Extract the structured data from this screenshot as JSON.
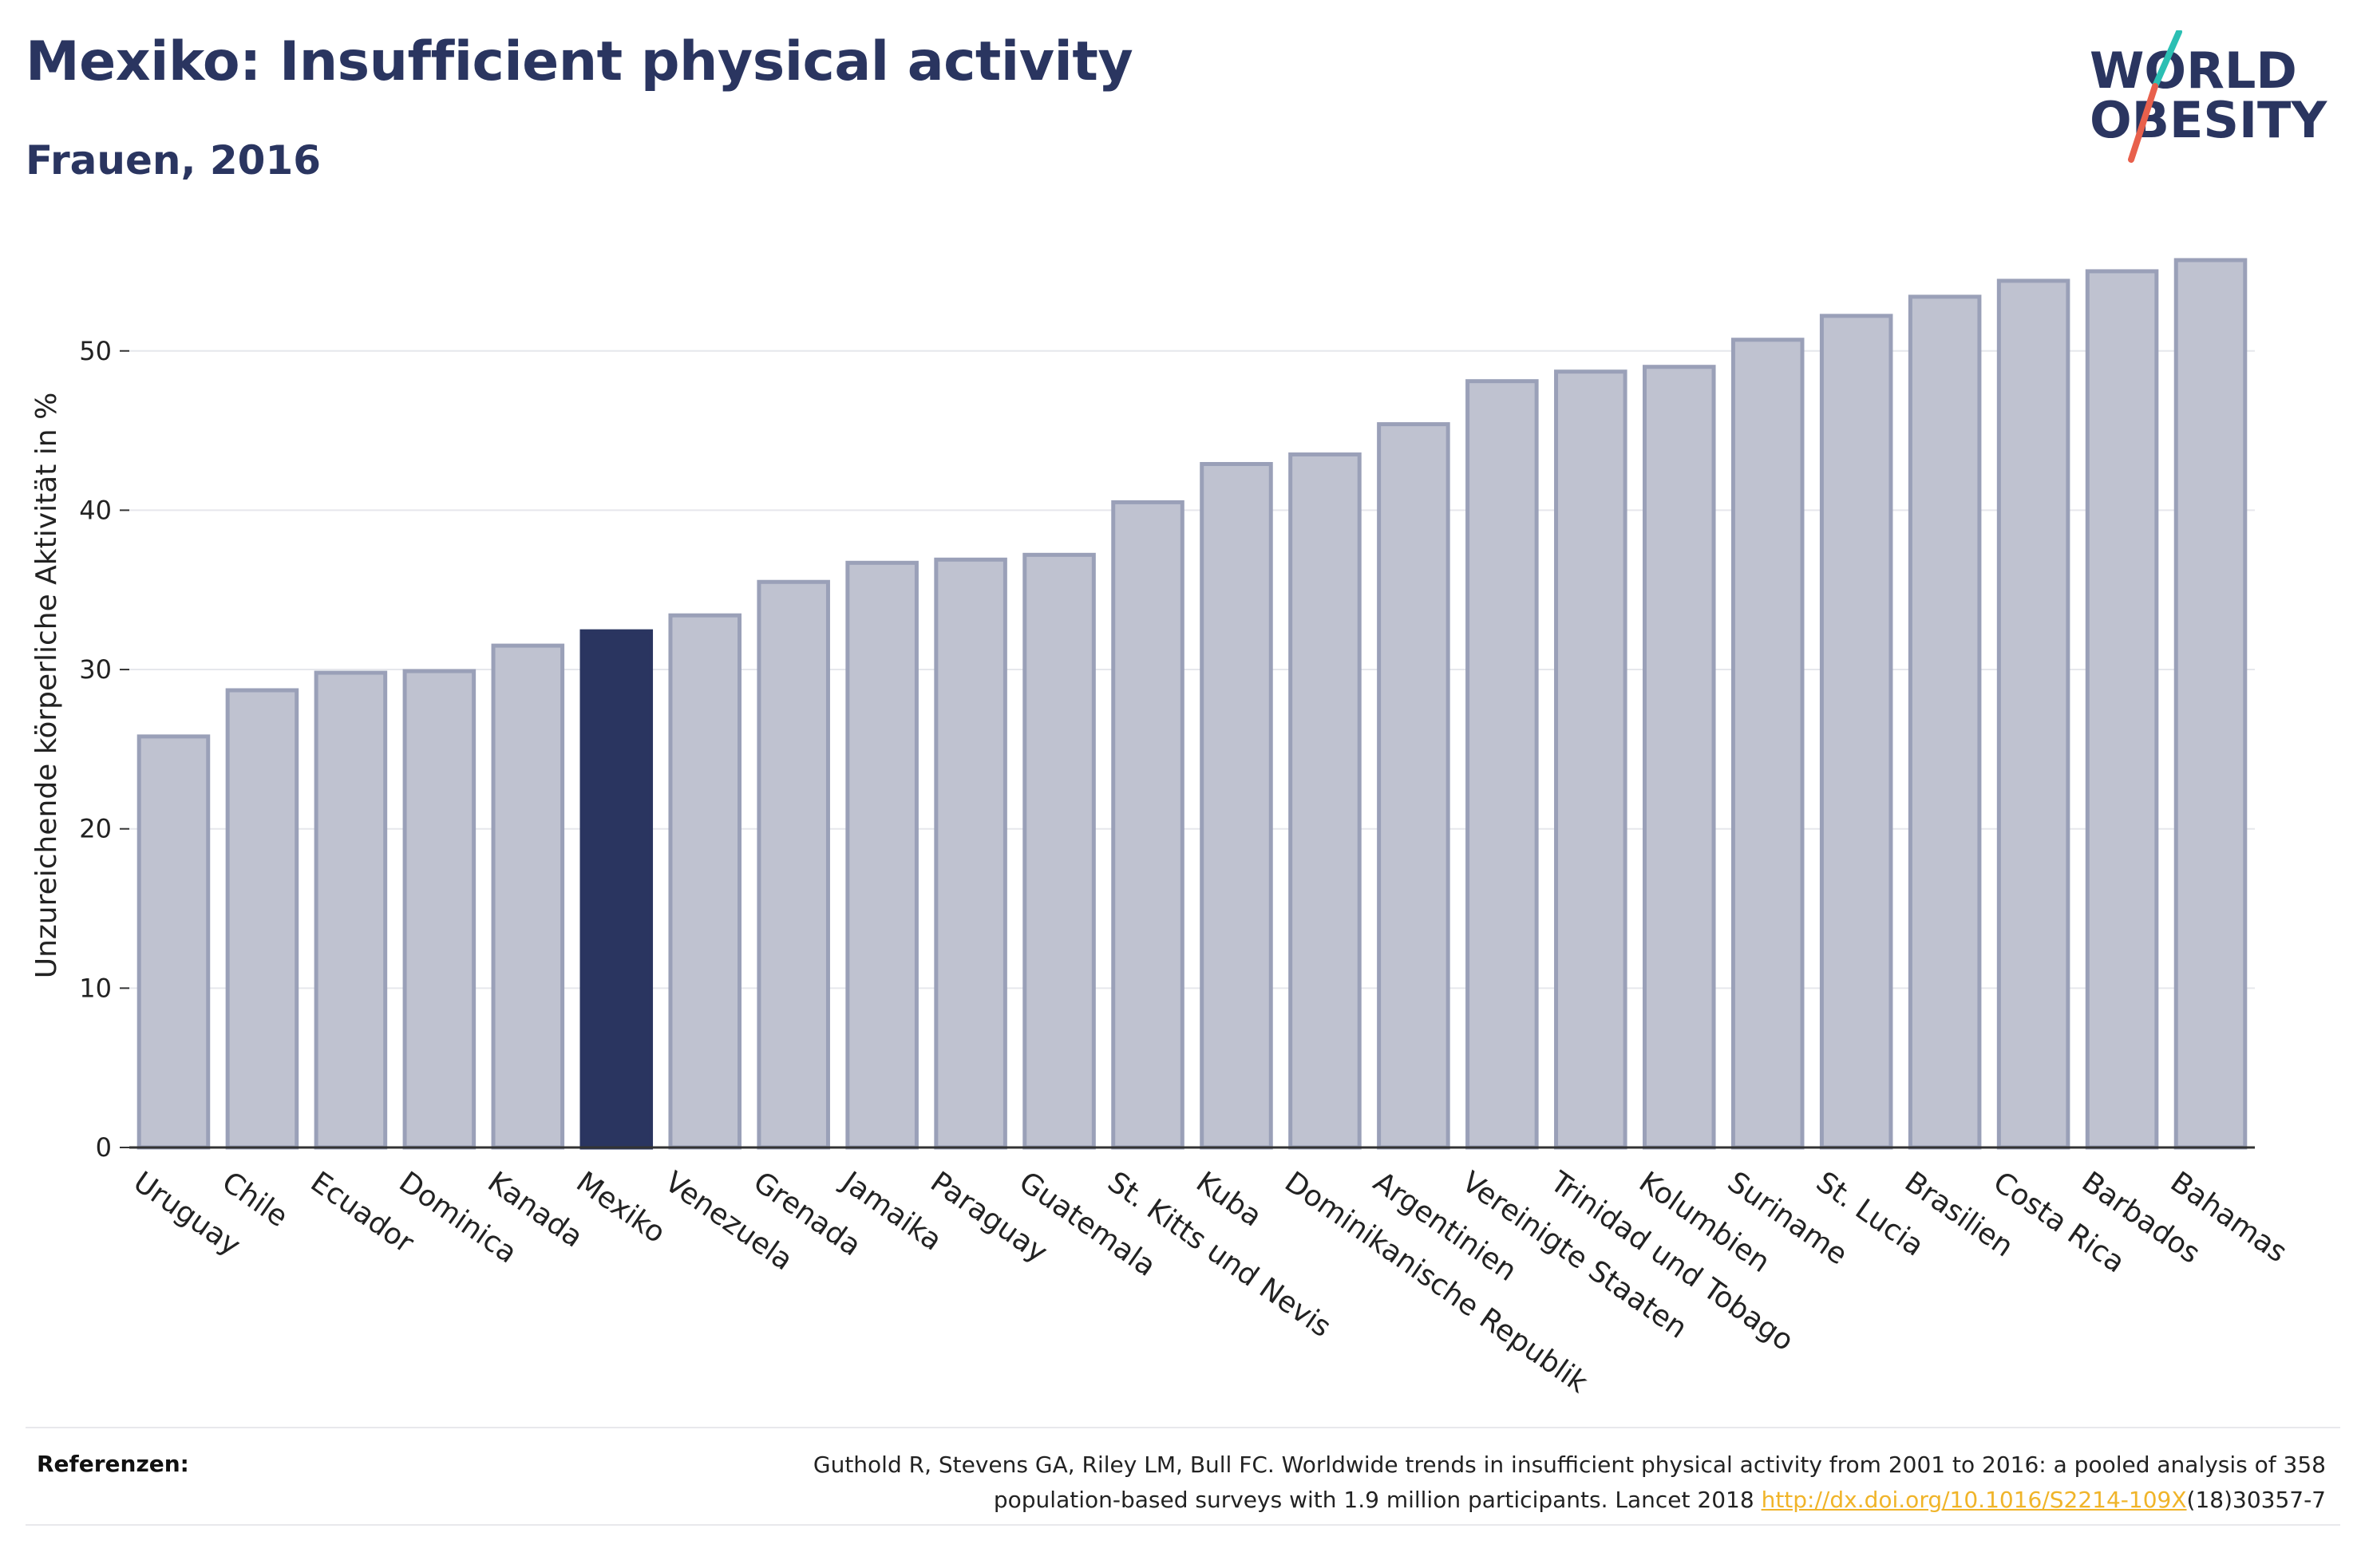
{
  "title": "Mexiko: Insufficient physical activity",
  "subtitle": "Frauen, 2016",
  "logo": {
    "line1": "WORLD",
    "line2": "OBESITY"
  },
  "colors": {
    "highlight": "#2a3560",
    "bar_fill": "#bfc2d0",
    "bar_stroke": "#9aa0b8",
    "slash_teal": "#2bbfb3",
    "slash_red": "#e8604c",
    "link": "#f0b429"
  },
  "chart_data": {
    "type": "bar",
    "ylabel": "Unzureichende körperliche Aktivität in %",
    "xlabel": "",
    "ylim": [
      0,
      57
    ],
    "yticks": [
      0,
      10,
      20,
      30,
      40,
      50
    ],
    "grid": true,
    "highlight": "Mexiko",
    "categories": [
      "Uruguay",
      "Chile",
      "Ecuador",
      "Dominica",
      "Kanada",
      "Mexiko",
      "Venezuela",
      "Grenada",
      "Jamaika",
      "Paraguay",
      "Guatemala",
      "St. Kitts und Nevis",
      "Kuba",
      "Dominikanische Republik",
      "Argentinien",
      "Vereinigte Staaten",
      "Trinidad und Tobago",
      "Kolumbien",
      "Suriname",
      "St. Lucia",
      "Brasilien",
      "Costa Rica",
      "Barbados",
      "Bahamas"
    ],
    "values": [
      25.8,
      28.7,
      29.8,
      29.9,
      31.5,
      32.4,
      33.4,
      35.5,
      36.7,
      36.9,
      37.2,
      40.5,
      42.9,
      43.5,
      45.4,
      48.1,
      48.7,
      49.0,
      50.7,
      52.2,
      53.4,
      54.4,
      55.0,
      55.7
    ]
  },
  "references": {
    "label": "Referenzen:",
    "line1": "Guthold R, Stevens GA, Riley LM, Bull FC. Worldwide trends in insufficient physical activity from 2001 to 2016: a pooled analysis of 358",
    "line2_prefix": "population-based surveys with 1.9 million participants. Lancet 2018 ",
    "link": "http://dx.doi.org/10.1016/S2214-109X",
    "line2_suffix": "(18)30357-7"
  }
}
